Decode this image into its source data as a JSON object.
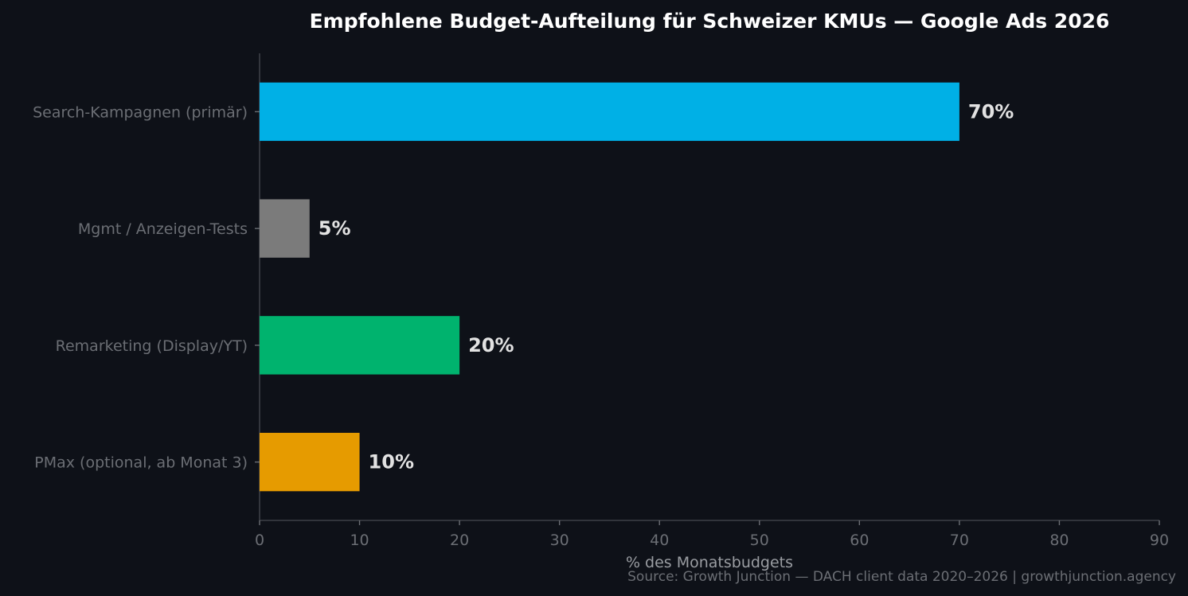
{
  "chart_data": {
    "type": "bar",
    "orientation": "horizontal",
    "title": "Empfohlene Budget-Aufteilung für Schweizer KMUs — Google Ads 2026",
    "xlabel": "% des Monatsbudgets",
    "ylabel": "",
    "xlim": [
      0,
      90
    ],
    "xticks": [
      0,
      10,
      20,
      30,
      40,
      50,
      60,
      70,
      80,
      90
    ],
    "categories": [
      "Search-Kampagnen (primär)",
      "Mgmt / Anzeigen-Tests",
      "Remarketing (Display/YT)",
      "PMax (optional, ab Monat 3)"
    ],
    "values": [
      70,
      5,
      20,
      10
    ],
    "data_labels": [
      "70%",
      "5%",
      "20%",
      "10%"
    ],
    "colors": [
      "#00b0e6",
      "#7b7b7b",
      "#00b36e",
      "#e69b00"
    ],
    "grid": false,
    "legend": "none"
  },
  "source": "Source: Growth Junction — DACH client data 2020–2026 | growthjunction.agency"
}
